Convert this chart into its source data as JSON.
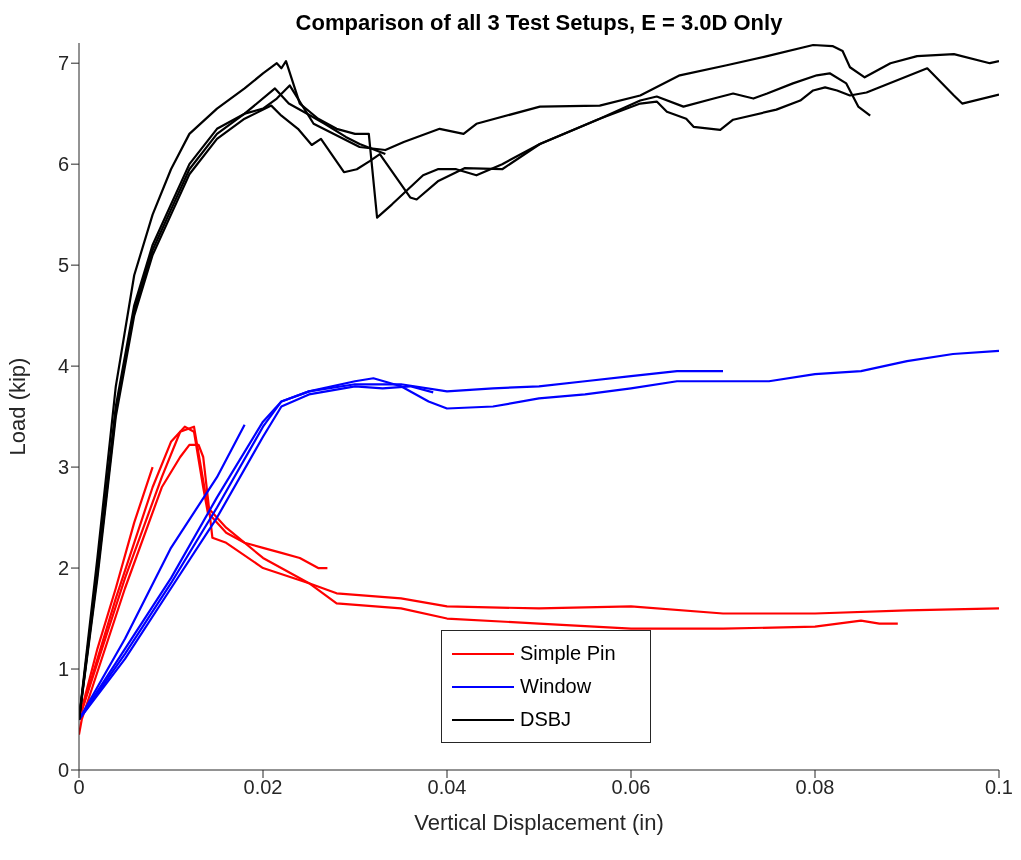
{
  "chart_data": {
    "type": "line",
    "title": "Comparison of all 3 Test Setups, E = 3.0D Only",
    "xlabel": "Vertical Displacement (in)",
    "ylabel": "Load (kip)",
    "xlim": [
      0,
      0.1
    ],
    "xticks": [
      0,
      0.02,
      0.04,
      0.06,
      0.08,
      0.1
    ],
    "ylim": [
      0,
      7.2
    ],
    "yticks": [
      0,
      1,
      2,
      3,
      4,
      5,
      6,
      7
    ],
    "legend": "bottom",
    "line_style": "solid",
    "marker": "none",
    "series": [
      {
        "name": "Simple Pin",
        "color": "#ff0000",
        "x": [
          0,
          0.002,
          0.004,
          0.006,
          0.008
        ],
        "values": [
          0.5,
          1.2,
          1.8,
          2.45,
          3.0
        ]
      },
      {
        "color": "#ff0000",
        "x": [
          0,
          0.004,
          0.008,
          0.01,
          0.0115,
          0.0125,
          0.0135,
          0.014,
          0.016,
          0.018,
          0.02,
          0.022,
          0.024,
          0.026,
          0.027
        ],
        "values": [
          0.5,
          1.7,
          2.8,
          3.25,
          3.4,
          3.35,
          2.8,
          2.55,
          2.35,
          2.25,
          2.2,
          2.15,
          2.1,
          2.0,
          2.0
        ]
      },
      {
        "color": "#ff0000",
        "x": [
          0,
          0.005,
          0.009,
          0.011,
          0.0125,
          0.014,
          0.016,
          0.02,
          0.025,
          0.028,
          0.035,
          0.04,
          0.05,
          0.06,
          0.07,
          0.08,
          0.09,
          0.1
        ],
        "values": [
          0.5,
          1.9,
          2.9,
          3.35,
          3.4,
          2.6,
          2.4,
          2.1,
          1.85,
          1.75,
          1.7,
          1.62,
          1.6,
          1.62,
          1.55,
          1.55,
          1.58,
          1.6
        ]
      },
      {
        "color": "#ff0000",
        "x": [
          0,
          0.0003,
          0.005,
          0.009,
          0.011,
          0.012,
          0.013,
          0.0135,
          0.0145,
          0.016,
          0.02,
          0.025,
          0.028,
          0.035,
          0.04,
          0.05,
          0.06,
          0.07,
          0.08,
          0.085,
          0.087,
          0.089
        ],
        "values": [
          0.35,
          0.5,
          1.8,
          2.8,
          3.1,
          3.22,
          3.22,
          3.1,
          2.3,
          2.25,
          2.0,
          1.85,
          1.65,
          1.6,
          1.5,
          1.45,
          1.4,
          1.4,
          1.42,
          1.48,
          1.45,
          1.45
        ]
      },
      {
        "name": "Window",
        "color": "#0000ff",
        "x": [
          0,
          0.005,
          0.01,
          0.015,
          0.018
        ],
        "values": [
          0.5,
          1.3,
          2.2,
          2.9,
          3.42
        ]
      },
      {
        "color": "#0000ff",
        "x": [
          0,
          0.005,
          0.01,
          0.015,
          0.02,
          0.022,
          0.025,
          0.03,
          0.035,
          0.04,
          0.045,
          0.05,
          0.055,
          0.06,
          0.065,
          0.07
        ],
        "values": [
          0.5,
          1.2,
          1.9,
          2.7,
          3.45,
          3.65,
          3.75,
          3.82,
          3.82,
          3.75,
          3.78,
          3.8,
          3.85,
          3.9,
          3.95,
          3.95
        ]
      },
      {
        "color": "#0000ff",
        "x": [
          0,
          0.005,
          0.01,
          0.015,
          0.02,
          0.022,
          0.025,
          0.03,
          0.032,
          0.035,
          0.038,
          0.04,
          0.045,
          0.05,
          0.055,
          0.06,
          0.065,
          0.07,
          0.075,
          0.08,
          0.085,
          0.09,
          0.095,
          0.1
        ],
        "values": [
          0.5,
          1.15,
          1.85,
          2.6,
          3.4,
          3.65,
          3.75,
          3.85,
          3.88,
          3.8,
          3.65,
          3.58,
          3.6,
          3.68,
          3.72,
          3.78,
          3.85,
          3.85,
          3.85,
          3.92,
          3.95,
          4.05,
          4.12,
          4.15
        ]
      },
      {
        "color": "#0000ff",
        "x": [
          0,
          0.005,
          0.01,
          0.015,
          0.02,
          0.022,
          0.025,
          0.03,
          0.033,
          0.036,
          0.0385
        ],
        "values": [
          0.5,
          1.1,
          1.8,
          2.5,
          3.3,
          3.6,
          3.72,
          3.8,
          3.78,
          3.8,
          3.74
        ]
      },
      {
        "name": "DSBJ",
        "color": "#000000",
        "x": [
          0,
          0.002,
          0.004,
          0.006,
          0.008,
          0.01,
          0.012,
          0.015,
          0.018,
          0.02,
          0.0215,
          0.0229,
          0.0255,
          0.0305,
          0.0333,
          0.0353,
          0.0392,
          0.0418,
          0.0432,
          0.0501,
          0.0566,
          0.061,
          0.0653,
          0.0704,
          0.0748,
          0.0798,
          0.0819,
          0.083,
          0.0838,
          0.0854,
          0.0882,
          0.0911,
          0.0951,
          0.099,
          0.1
        ],
        "values": [
          0.5,
          2.0,
          3.6,
          4.6,
          5.2,
          5.6,
          6.0,
          6.35,
          6.5,
          6.55,
          6.65,
          6.78,
          6.4,
          6.17,
          6.14,
          6.22,
          6.35,
          6.3,
          6.4,
          6.57,
          6.58,
          6.68,
          6.88,
          6.98,
          7.07,
          7.18,
          7.17,
          7.12,
          6.96,
          6.86,
          7.0,
          7.07,
          7.09,
          7.0,
          7.02
        ]
      },
      {
        "color": "#000000",
        "x": [
          0,
          0.002,
          0.004,
          0.006,
          0.008,
          0.01,
          0.012,
          0.015,
          0.018,
          0.02,
          0.0215,
          0.022,
          0.0225,
          0.024,
          0.026,
          0.028,
          0.03,
          0.0315,
          0.0324,
          0.034,
          0.0374,
          0.039,
          0.041,
          0.0432,
          0.046,
          0.0501,
          0.0566,
          0.061,
          0.0628,
          0.0639,
          0.066,
          0.0668,
          0.0697,
          0.0711,
          0.0758,
          0.0784,
          0.0798,
          0.0811,
          0.0824,
          0.0838,
          0.0856,
          0.0922,
          0.0951,
          0.096,
          0.1
        ],
        "values": [
          0.5,
          2.1,
          3.8,
          4.9,
          5.5,
          5.95,
          6.3,
          6.55,
          6.75,
          6.9,
          7.0,
          6.95,
          7.02,
          6.6,
          6.45,
          6.35,
          6.3,
          6.3,
          5.47,
          5.6,
          5.89,
          5.95,
          5.95,
          5.89,
          6.0,
          6.2,
          6.45,
          6.6,
          6.62,
          6.52,
          6.45,
          6.37,
          6.34,
          6.44,
          6.54,
          6.63,
          6.73,
          6.76,
          6.73,
          6.68,
          6.71,
          6.95,
          6.68,
          6.6,
          6.69
        ]
      },
      {
        "color": "#000000",
        "x": [
          0,
          0.002,
          0.004,
          0.006,
          0.008,
          0.01,
          0.012,
          0.015,
          0.018,
          0.0209,
          0.022,
          0.0238,
          0.0253,
          0.0263,
          0.0288,
          0.0302,
          0.0316,
          0.0327,
          0.036,
          0.0367,
          0.039,
          0.0419,
          0.046,
          0.0501,
          0.0566,
          0.061,
          0.0628,
          0.0657,
          0.069,
          0.0711,
          0.0733,
          0.0748,
          0.0776,
          0.0802,
          0.0816,
          0.0834,
          0.0847,
          0.086
        ],
        "values": [
          0.5,
          1.9,
          3.5,
          4.5,
          5.1,
          5.5,
          5.9,
          6.25,
          6.45,
          6.58,
          6.48,
          6.35,
          6.19,
          6.25,
          5.92,
          5.95,
          6.03,
          6.1,
          5.67,
          5.65,
          5.83,
          5.96,
          5.95,
          6.2,
          6.45,
          6.63,
          6.67,
          6.57,
          6.65,
          6.7,
          6.65,
          6.7,
          6.8,
          6.88,
          6.9,
          6.8,
          6.57,
          6.48
        ]
      },
      {
        "color": "#000000",
        "x": [
          0,
          0.002,
          0.004,
          0.006,
          0.008,
          0.01,
          0.012,
          0.015,
          0.018,
          0.0213,
          0.0228,
          0.0248,
          0.0267,
          0.029,
          0.0305,
          0.0333
        ],
        "values": [
          0.5,
          1.95,
          3.55,
          4.55,
          5.15,
          5.55,
          5.95,
          6.3,
          6.5,
          6.75,
          6.6,
          6.5,
          6.4,
          6.27,
          6.2,
          6.1
        ]
      }
    ]
  }
}
